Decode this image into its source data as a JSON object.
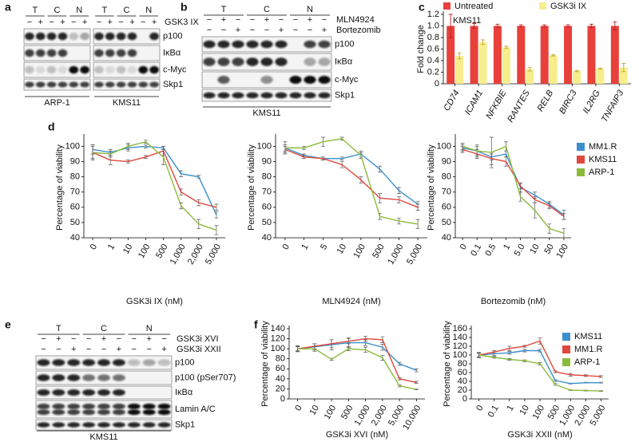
{
  "panel_letters": [
    "a",
    "b",
    "c",
    "d",
    "e",
    "f"
  ],
  "blots": [
    {
      "groups": [
        "T",
        "C",
        "N",
        "T",
        "C",
        "N"
      ],
      "treatments": [
        {
          "name": "GSK3 IX",
          "signs": [
            "−",
            "+",
            "−",
            "+",
            "−",
            "+",
            "−",
            "+",
            "−",
            "+",
            "−",
            "+"
          ]
        }
      ],
      "bands": [
        "p100",
        "IκBα",
        "c-Myc",
        "Skp1"
      ],
      "cell_lines": [
        "ARP-1",
        "KMS11"
      ]
    },
    {
      "groups": [
        "T",
        "C",
        "N"
      ],
      "treatments": [
        {
          "name": "MLN4924",
          "signs": [
            "−",
            "+",
            "−",
            "−",
            "+",
            "−",
            "−",
            "+",
            "−"
          ]
        },
        {
          "name": "Bortezomib",
          "signs": [
            "−",
            "−",
            "+",
            "−",
            "−",
            "+",
            "−",
            "−",
            "+"
          ]
        }
      ],
      "bands": [
        "p100",
        "IκBα",
        "c-Myc",
        "Skp1"
      ],
      "cell_lines": [
        "KMS11"
      ]
    },
    {
      "groups": [
        "T",
        "C",
        "N"
      ],
      "treatments": [
        {
          "name": "GSK3i XVI",
          "signs": [
            "−",
            "+",
            "−",
            "−",
            "+",
            "−",
            "−",
            "+",
            "−"
          ]
        },
        {
          "name": "GSK3i XXII",
          "signs": [
            "−",
            "−",
            "+",
            "−",
            "−",
            "+",
            "−",
            "−",
            "+"
          ]
        }
      ],
      "bands": [
        "p100",
        "p100 (pSer707)",
        "IκBα",
        "Lamin A/C",
        "Skp1"
      ],
      "cell_lines": [
        "KMS11"
      ]
    }
  ],
  "chart_data": [
    {
      "type": "bar",
      "y_label": "Fold change",
      "annotation": "KMS11",
      "legend": "top",
      "categories": [
        "CD74",
        "ICAM1",
        "NFKBIE",
        "RANTES",
        "RELB",
        "BIRC3",
        "IL2RG",
        "TNFAIP3"
      ],
      "series": [
        {
          "name": "Untreated",
          "color": "#e8403a",
          "values": [
            1,
            1,
            1,
            1,
            1,
            1,
            1,
            1
          ],
          "errors": [
            0.2,
            0.04,
            0.03,
            0.02,
            0.02,
            0.02,
            0.03,
            0.07
          ]
        },
        {
          "name": "GSK3i IX",
          "color": "#f6ee8c",
          "values": [
            0.48,
            0.72,
            0.63,
            0.25,
            0.49,
            0.22,
            0.26,
            0.28
          ],
          "errors": [
            0.05,
            0.04,
            0.02,
            0.03,
            0.01,
            0.01,
            0.01,
            0.07
          ]
        }
      ],
      "ylim": [
        0,
        1.2
      ],
      "yticks": [
        0,
        0.2,
        0.4,
        0.6,
        0.8,
        {
          "value": 1,
          "label": "1.0"
        },
        1.2
      ]
    },
    {
      "type": "line",
      "x_label": "GSK3i IX (nM)",
      "y_label": "Percentage of viability",
      "categories": [
        "0",
        "1",
        "10",
        "100",
        "500",
        "1,000",
        "2,000",
        "5,000"
      ],
      "series": [
        {
          "color": "#3a90cc",
          "values": [
            98,
            96,
            99,
            100,
            99,
            82,
            80,
            55
          ],
          "errors": [
            3,
            2,
            2,
            1,
            1,
            2,
            1,
            2
          ]
        },
        {
          "color": "#e0483e",
          "values": [
            96,
            91,
            90,
            93,
            97,
            70,
            63,
            60
          ],
          "errors": [
            4,
            3,
            1,
            1,
            3,
            2,
            2,
            2
          ]
        },
        {
          "color": "#8cbb3c",
          "values": [
            96,
            95,
            100,
            103,
            93,
            61,
            49,
            45
          ],
          "errors": [
            5,
            2,
            2,
            1,
            5,
            2,
            3,
            3
          ]
        }
      ],
      "ylim": [
        40,
        106
      ],
      "yticks": [
        40,
        50,
        60,
        70,
        80,
        90,
        100
      ]
    },
    {
      "type": "line",
      "x_label": "MLN4924 (nM)",
      "y_label": "Percentage of viability",
      "categories": [
        "0",
        "1",
        "5",
        "10",
        "100",
        "500",
        "1,000",
        "5,000"
      ],
      "series": [
        {
          "color": "#3a90cc",
          "values": [
            99,
            94,
            92,
            92,
            95,
            85,
            71,
            62
          ],
          "errors": [
            2,
            1,
            1,
            1,
            2,
            2,
            2,
            2
          ]
        },
        {
          "color": "#e0483e",
          "values": [
            98,
            93,
            92,
            88,
            78,
            66,
            65,
            60
          ],
          "errors": [
            2,
            1,
            1,
            2,
            2,
            3,
            2,
            2
          ]
        },
        {
          "color": "#8cbb3c",
          "values": [
            99,
            99,
            103,
            105,
            94,
            54,
            51,
            49
          ],
          "errors": [
            4,
            1,
            3,
            1,
            2,
            2,
            2,
            3
          ]
        }
      ],
      "ylim": [
        40,
        106
      ],
      "yticks": [
        40,
        50,
        60,
        70,
        80,
        90,
        100
      ]
    },
    {
      "type": "line",
      "x_label": "Bortezomib (nM)",
      "y_label": "Percentage of viability",
      "legend": "right",
      "categories": [
        "0",
        "0.1",
        "0.5",
        "1",
        "5.0",
        "10",
        "50",
        "100"
      ],
      "series": [
        {
          "name": "MM1.R",
          "color": "#3a90cc",
          "values": [
            99,
            97,
            93,
            95,
            73,
            68,
            62,
            55
          ],
          "errors": [
            2,
            3,
            2,
            2,
            3,
            2,
            2,
            3
          ]
        },
        {
          "name": "KMS11",
          "color": "#e0483e",
          "values": [
            98,
            95,
            92,
            90,
            74,
            65,
            61,
            54
          ],
          "errors": [
            2,
            3,
            4,
            3,
            2,
            2,
            2,
            2
          ]
        },
        {
          "name": "ARP-1",
          "color": "#8cbb3c",
          "values": [
            100,
            97,
            96,
            100,
            67,
            58,
            46,
            43
          ],
          "errors": [
            2,
            4,
            10,
            3,
            3,
            5,
            3,
            3
          ]
        }
      ],
      "ylim": [
        40,
        106
      ],
      "yticks": [
        40,
        50,
        60,
        70,
        80,
        90,
        100
      ]
    },
    {
      "type": "line",
      "x_label": "GSK3i XVI (nM)",
      "y_label": "Percentage of viability",
      "categories": [
        "0",
        "10",
        "100",
        "500",
        "1,000",
        "2,000",
        "5,000",
        "10,000"
      ],
      "series": [
        {
          "color": "#3a90cc",
          "values": [
            100,
            104,
            108,
            112,
            112,
            103,
            70,
            57
          ],
          "errors": [
            5,
            6,
            10,
            10,
            6,
            6,
            3,
            3
          ]
        },
        {
          "color": "#e0483e",
          "values": [
            100,
            105,
            110,
            115,
            120,
            118,
            40,
            33
          ],
          "errors": [
            4,
            5,
            8,
            5,
            5,
            6,
            2,
            2
          ]
        },
        {
          "color": "#8cbb3c",
          "values": [
            100,
            100,
            79,
            100,
            98,
            82,
            26,
            19
          ],
          "errors": [
            6,
            5,
            2,
            4,
            5,
            5,
            2,
            1
          ]
        }
      ],
      "ylim": [
        0,
        140
      ],
      "yticks": [
        0,
        20,
        40,
        60,
        80,
        100,
        120,
        140
      ]
    },
    {
      "type": "line",
      "x_label": "GSK3i XXII (nM)",
      "y_label": "Percentage of viability",
      "legend": "right",
      "categories": [
        "0",
        "0.1",
        "1",
        "10",
        "100",
        "500",
        "1,000",
        "2,000",
        "5,000"
      ],
      "series": [
        {
          "name": "KMS11",
          "color": "#3a90cc",
          "values": [
            100,
            103,
            105,
            110,
            110,
            42,
            35,
            37,
            37
          ],
          "errors": [
            6,
            4,
            3,
            3,
            3,
            2,
            1,
            1,
            1
          ]
        },
        {
          "name": "MM1.R",
          "color": "#e0483e",
          "values": [
            100,
            107,
            115,
            120,
            132,
            62,
            55,
            53,
            51
          ],
          "errors": [
            4,
            3,
            5,
            2,
            7,
            2,
            3,
            2,
            2
          ]
        },
        {
          "name": "ARP-1",
          "color": "#8cbb3c",
          "values": [
            100,
            95,
            90,
            87,
            80,
            33,
            20,
            19,
            18
          ],
          "errors": [
            5,
            2,
            2,
            2,
            3,
            2,
            1,
            1,
            1
          ]
        }
      ],
      "ylim": [
        0,
        160
      ],
      "yticks": [
        0,
        20,
        40,
        60,
        80,
        100,
        120,
        140,
        160
      ]
    }
  ]
}
